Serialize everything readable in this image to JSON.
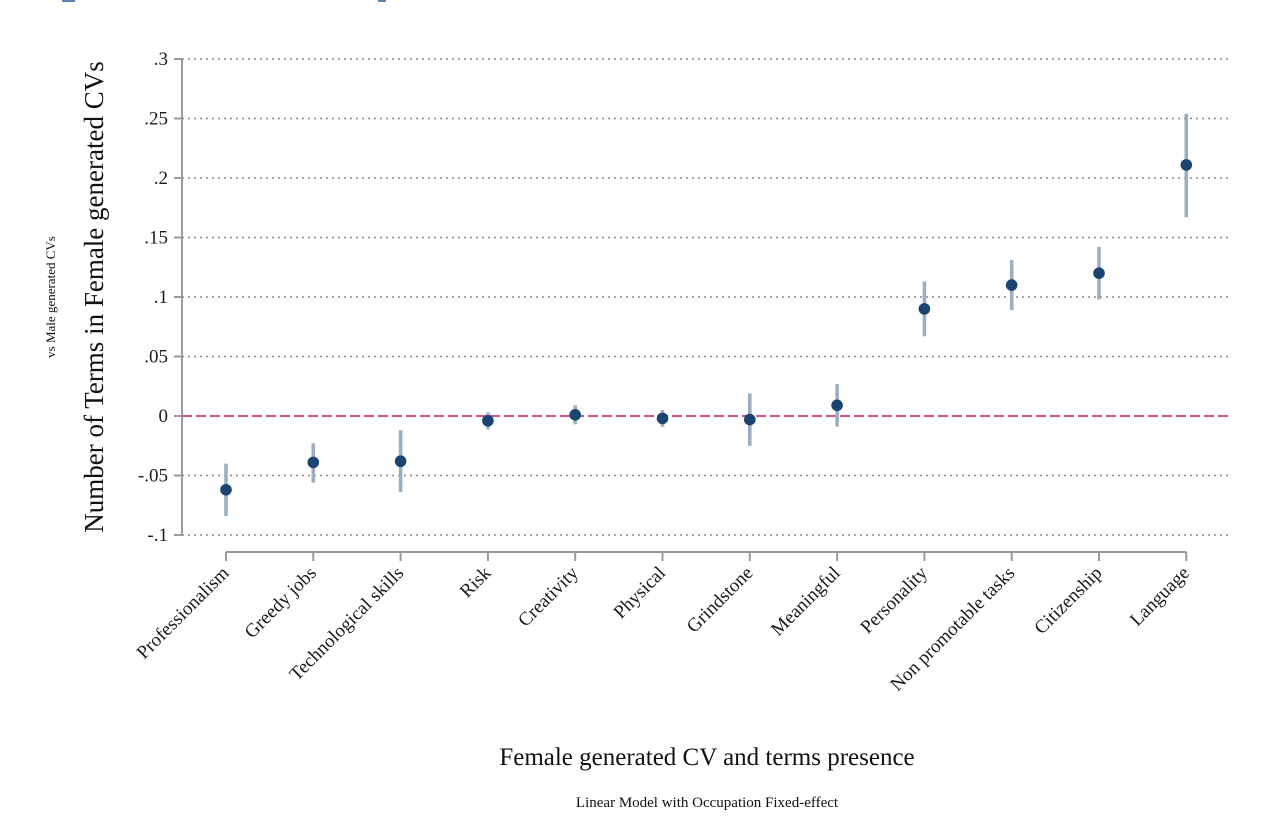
{
  "chart_data": {
    "type": "scatter",
    "subtype": "coefficient-plot-with-confidence-intervals",
    "categories": [
      "Professionalism",
      "Greedy jobs",
      "Technological skills",
      "Risk",
      "Creativity",
      "Physical",
      "Grindstone",
      "Meaningful",
      "Personality",
      "Non promotable tasks",
      "Citizenship",
      "Language"
    ],
    "series": [
      {
        "values": [
          -0.062,
          -0.039,
          -0.038,
          -0.004,
          0.001,
          -0.002,
          -0.003,
          0.009,
          0.09,
          0.11,
          0.12,
          0.211
        ],
        "ci_low": [
          -0.084,
          -0.056,
          -0.064,
          -0.011,
          -0.007,
          -0.009,
          -0.025,
          -0.009,
          0.067,
          0.089,
          0.098,
          0.167
        ],
        "ci_high": [
          -0.04,
          -0.023,
          -0.012,
          0.003,
          0.009,
          0.005,
          0.019,
          0.027,
          0.113,
          0.131,
          0.142,
          0.254
        ]
      }
    ],
    "ylim": [
      -0.1,
      0.3
    ],
    "yticks": [
      {
        "value": -0.1,
        "label": "-.1"
      },
      {
        "value": -0.05,
        "label": "-.05"
      },
      {
        "value": 0,
        "label": "0"
      },
      {
        "value": 0.05,
        "label": ".05"
      },
      {
        "value": 0.1,
        "label": ".1"
      },
      {
        "value": 0.15,
        "label": ".15"
      },
      {
        "value": 0.2,
        "label": ".2"
      },
      {
        "value": 0.25,
        "label": ".25"
      },
      {
        "value": 0.3,
        "label": ".3"
      }
    ],
    "reference_line": 0,
    "grid": true,
    "ylabel": "Number of Terms in Female generated CVs",
    "ylabel_secondary": "vs Male generated CVs",
    "xlabel": "Female generated CV and terms presence",
    "note": "Linear Model with Occupation Fixed-effect",
    "colors": {
      "point": "#1a4570",
      "ci": "#9aafc2",
      "reference_line": "#c85e8f",
      "grid": "#8a8a8a",
      "axis": "#9a9a9a"
    }
  }
}
